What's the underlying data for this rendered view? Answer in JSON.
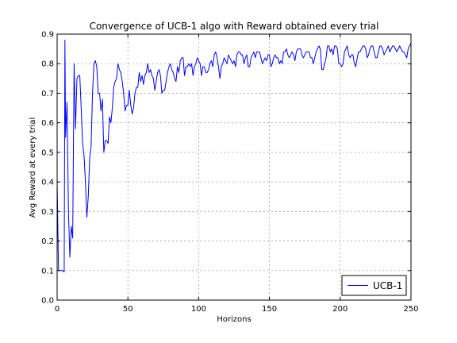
{
  "chart_data": {
    "type": "line",
    "title": "Convergence of UCB-1 algo with Reward obtained every trial",
    "xlabel": "Horizons",
    "ylabel": "Avg Reward at every trial",
    "xlim": [
      0,
      250
    ],
    "ylim": [
      0.0,
      0.9
    ],
    "xticks": [
      0,
      50,
      100,
      150,
      200,
      250
    ],
    "yticks": [
      0.0,
      0.1,
      0.2,
      0.3,
      0.4,
      0.5,
      0.6,
      0.7,
      0.8,
      0.9
    ],
    "xtick_labels": [
      "0",
      "50",
      "100",
      "150",
      "200",
      "250"
    ],
    "ytick_labels": [
      "0.0",
      "0.1",
      "0.2",
      "0.3",
      "0.4",
      "0.5",
      "0.6",
      "0.7",
      "0.8",
      "0.9"
    ],
    "grid": true,
    "legend_position": "lower-right",
    "series": [
      {
        "name": "UCB-1",
        "color": "#0000ff",
        "points": [
          [
            0,
            0.4
          ],
          [
            1,
            0.1
          ],
          [
            2,
            0.1
          ],
          [
            3,
            0.1
          ],
          [
            4,
            0.1
          ],
          [
            5,
            0.095
          ],
          [
            5.5,
            0.88
          ],
          [
            6,
            0.55
          ],
          [
            7,
            0.67
          ],
          [
            8,
            0.3
          ],
          [
            9,
            0.145
          ],
          [
            10,
            0.25
          ],
          [
            11,
            0.21
          ],
          [
            12,
            0.8
          ],
          [
            13,
            0.58
          ],
          [
            14,
            0.75
          ],
          [
            15,
            0.76
          ],
          [
            16,
            0.76
          ],
          [
            17,
            0.65
          ],
          [
            18,
            0.53
          ],
          [
            19,
            0.49
          ],
          [
            20,
            0.4
          ],
          [
            21,
            0.28
          ],
          [
            22,
            0.35
          ],
          [
            23,
            0.48
          ],
          [
            24,
            0.52
          ],
          [
            25,
            0.7
          ],
          [
            26,
            0.8
          ],
          [
            27,
            0.81
          ],
          [
            28,
            0.79
          ],
          [
            29,
            0.7
          ],
          [
            30,
            0.7
          ],
          [
            31,
            0.64
          ],
          [
            32,
            0.68
          ],
          [
            33,
            0.5
          ],
          [
            34,
            0.54
          ],
          [
            35,
            0.54
          ],
          [
            36,
            0.53
          ],
          [
            37,
            0.62
          ],
          [
            38,
            0.6
          ],
          [
            39,
            0.65
          ],
          [
            40,
            0.72
          ],
          [
            41,
            0.74
          ],
          [
            42,
            0.75
          ],
          [
            43,
            0.8
          ],
          [
            44,
            0.78
          ],
          [
            45,
            0.77
          ],
          [
            46,
            0.74
          ],
          [
            47,
            0.7
          ],
          [
            48,
            0.64
          ],
          [
            49,
            0.66
          ],
          [
            50,
            0.66
          ],
          [
            51,
            0.71
          ],
          [
            52,
            0.66
          ],
          [
            53,
            0.63
          ],
          [
            54,
            0.65
          ],
          [
            55,
            0.7
          ],
          [
            56,
            0.72
          ],
          [
            57,
            0.72
          ],
          [
            58,
            0.77
          ],
          [
            59,
            0.74
          ],
          [
            60,
            0.76
          ],
          [
            61,
            0.73
          ],
          [
            62,
            0.76
          ],
          [
            63,
            0.77
          ],
          [
            64,
            0.8
          ],
          [
            65,
            0.77
          ],
          [
            66,
            0.78
          ],
          [
            67,
            0.76
          ],
          [
            68,
            0.75
          ],
          [
            69,
            0.71
          ],
          [
            70,
            0.74
          ],
          [
            71,
            0.77
          ],
          [
            72,
            0.78
          ],
          [
            73,
            0.76
          ],
          [
            74,
            0.7
          ],
          [
            75,
            0.71
          ],
          [
            76,
            0.71
          ],
          [
            77,
            0.74
          ],
          [
            78,
            0.77
          ],
          [
            79,
            0.79
          ],
          [
            80,
            0.8
          ],
          [
            81,
            0.78
          ],
          [
            82,
            0.77
          ],
          [
            83,
            0.75
          ],
          [
            84,
            0.74
          ],
          [
            85,
            0.79
          ],
          [
            86,
            0.77
          ],
          [
            87,
            0.81
          ],
          [
            88,
            0.82
          ],
          [
            89,
            0.82
          ],
          [
            90,
            0.76
          ],
          [
            91,
            0.79
          ],
          [
            92,
            0.79
          ],
          [
            93,
            0.8
          ],
          [
            94,
            0.79
          ],
          [
            95,
            0.8
          ],
          [
            96,
            0.76
          ],
          [
            97,
            0.79
          ],
          [
            98,
            0.8
          ],
          [
            99,
            0.82
          ],
          [
            100,
            0.81
          ],
          [
            101,
            0.8
          ],
          [
            102,
            0.76
          ],
          [
            103,
            0.79
          ],
          [
            104,
            0.79
          ],
          [
            105,
            0.77
          ],
          [
            106,
            0.77
          ],
          [
            107,
            0.78
          ],
          [
            108,
            0.8
          ],
          [
            109,
            0.81
          ],
          [
            110,
            0.79
          ],
          [
            111,
            0.83
          ],
          [
            112,
            0.84
          ],
          [
            113,
            0.82
          ],
          [
            114,
            0.79
          ],
          [
            115,
            0.75
          ],
          [
            116,
            0.79
          ],
          [
            117,
            0.8
          ],
          [
            118,
            0.82
          ],
          [
            119,
            0.81
          ],
          [
            120,
            0.8
          ],
          [
            121,
            0.83
          ],
          [
            122,
            0.82
          ],
          [
            123,
            0.81
          ],
          [
            124,
            0.8
          ],
          [
            125,
            0.81
          ],
          [
            126,
            0.79
          ],
          [
            127,
            0.83
          ],
          [
            128,
            0.84
          ],
          [
            129,
            0.84
          ],
          [
            130,
            0.83
          ],
          [
            131,
            0.83
          ],
          [
            132,
            0.8
          ],
          [
            133,
            0.82
          ],
          [
            134,
            0.83
          ],
          [
            135,
            0.79
          ],
          [
            136,
            0.79
          ],
          [
            137,
            0.82
          ],
          [
            138,
            0.83
          ],
          [
            139,
            0.84
          ],
          [
            140,
            0.82
          ],
          [
            141,
            0.84
          ],
          [
            142,
            0.84
          ],
          [
            143,
            0.84
          ],
          [
            144,
            0.82
          ],
          [
            145,
            0.8
          ],
          [
            146,
            0.81
          ],
          [
            147,
            0.82
          ],
          [
            148,
            0.81
          ],
          [
            149,
            0.83
          ],
          [
            150,
            0.83
          ],
          [
            151,
            0.79
          ],
          [
            152,
            0.8
          ],
          [
            153,
            0.82
          ],
          [
            154,
            0.83
          ],
          [
            155,
            0.82
          ],
          [
            156,
            0.82
          ],
          [
            157,
            0.8
          ],
          [
            158,
            0.81
          ],
          [
            159,
            0.8
          ],
          [
            160,
            0.84
          ],
          [
            161,
            0.84
          ],
          [
            162,
            0.85
          ],
          [
            163,
            0.83
          ],
          [
            164,
            0.82
          ],
          [
            165,
            0.83
          ],
          [
            166,
            0.84
          ],
          [
            167,
            0.83
          ],
          [
            168,
            0.81
          ],
          [
            169,
            0.84
          ],
          [
            170,
            0.85
          ],
          [
            171,
            0.85
          ],
          [
            172,
            0.85
          ],
          [
            173,
            0.83
          ],
          [
            174,
            0.82
          ],
          [
            175,
            0.83
          ],
          [
            176,
            0.84
          ],
          [
            177,
            0.84
          ],
          [
            178,
            0.84
          ],
          [
            179,
            0.82
          ],
          [
            180,
            0.82
          ],
          [
            181,
            0.8
          ],
          [
            182,
            0.82
          ],
          [
            183,
            0.84
          ],
          [
            184,
            0.85
          ],
          [
            185,
            0.86
          ],
          [
            186,
            0.85
          ],
          [
            187,
            0.78
          ],
          [
            188,
            0.78
          ],
          [
            189,
            0.8
          ],
          [
            190,
            0.82
          ],
          [
            191,
            0.86
          ],
          [
            192,
            0.86
          ],
          [
            193,
            0.84
          ],
          [
            194,
            0.85
          ],
          [
            195,
            0.83
          ],
          [
            196,
            0.86
          ],
          [
            197,
            0.86
          ],
          [
            198,
            0.85
          ],
          [
            199,
            0.8
          ],
          [
            200,
            0.8
          ],
          [
            201,
            0.79
          ],
          [
            202,
            0.8
          ],
          [
            203,
            0.84
          ],
          [
            204,
            0.85
          ],
          [
            205,
            0.86
          ],
          [
            206,
            0.83
          ],
          [
            207,
            0.82
          ],
          [
            208,
            0.83
          ],
          [
            209,
            0.83
          ],
          [
            210,
            0.8
          ],
          [
            211,
            0.79
          ],
          [
            212,
            0.82
          ],
          [
            213,
            0.84
          ],
          [
            214,
            0.84
          ],
          [
            215,
            0.85
          ],
          [
            216,
            0.86
          ],
          [
            217,
            0.86
          ],
          [
            218,
            0.85
          ],
          [
            219,
            0.82
          ],
          [
            220,
            0.83
          ],
          [
            221,
            0.85
          ],
          [
            222,
            0.86
          ],
          [
            223,
            0.86
          ],
          [
            224,
            0.84
          ],
          [
            225,
            0.82
          ],
          [
            226,
            0.82
          ],
          [
            227,
            0.84
          ],
          [
            228,
            0.86
          ],
          [
            229,
            0.86
          ],
          [
            230,
            0.85
          ],
          [
            231,
            0.83
          ],
          [
            232,
            0.84
          ],
          [
            233,
            0.85
          ],
          [
            234,
            0.86
          ],
          [
            235,
            0.84
          ],
          [
            236,
            0.85
          ],
          [
            237,
            0.86
          ],
          [
            238,
            0.86
          ],
          [
            239,
            0.85
          ],
          [
            240,
            0.84
          ],
          [
            241,
            0.85
          ],
          [
            242,
            0.86
          ],
          [
            243,
            0.85
          ],
          [
            244,
            0.84
          ],
          [
            245,
            0.84
          ],
          [
            246,
            0.83
          ],
          [
            247,
            0.82
          ],
          [
            248,
            0.85
          ],
          [
            249,
            0.86
          ],
          [
            250,
            0.87
          ]
        ]
      }
    ]
  }
}
